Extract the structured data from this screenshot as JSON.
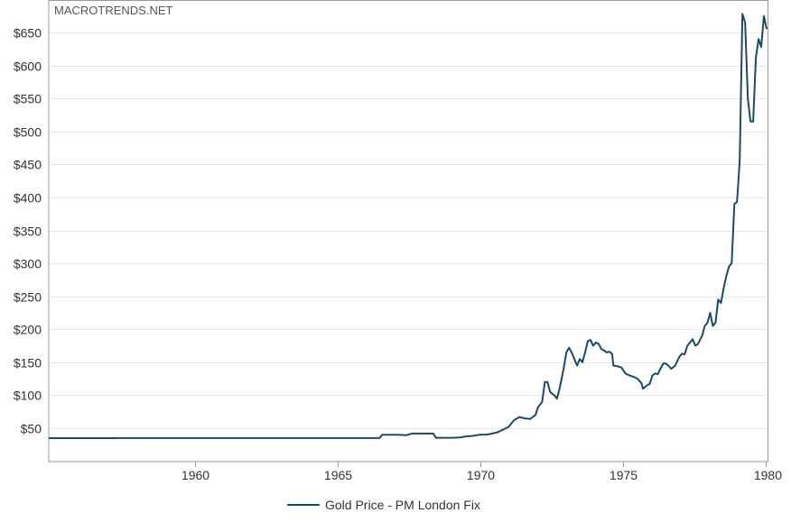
{
  "watermark": "MACROTRENDS.NET",
  "legend": {
    "label": "Gold Price - PM London Fix",
    "color": "#1b4a63"
  },
  "colors": {
    "line": "#1b4a63",
    "grid": "#e6e6e6",
    "frame": "#999999"
  },
  "chart_data": {
    "type": "line",
    "title": "",
    "xlabel": "",
    "ylabel": "",
    "xlim": [
      1955.0,
      1980.0
    ],
    "ylim": [
      0,
      680
    ],
    "grid": true,
    "legend_position": "bottom-center",
    "x_ticks": [
      1960,
      1965,
      1970,
      1975,
      1980
    ],
    "x_tick_labels": [
      "1960",
      "1965",
      "1970",
      "1975",
      "1980"
    ],
    "y_ticks": [
      50,
      100,
      150,
      200,
      250,
      300,
      350,
      400,
      450,
      500,
      550,
      600,
      650
    ],
    "y_tick_labels": [
      "$50",
      "$100",
      "$150",
      "$200",
      "$250",
      "$300",
      "$350",
      "$400",
      "$450",
      "$500",
      "$550",
      "$600",
      "$650"
    ],
    "series": [
      {
        "name": "Gold Price - PM London Fix",
        "points": [
          [
            1955.0,
            35.0
          ],
          [
            1956.5,
            35.0
          ],
          [
            1956.6,
            34.9
          ],
          [
            1957.5,
            34.9
          ],
          [
            1957.6,
            35.1
          ],
          [
            1960.0,
            35.1
          ],
          [
            1965.0,
            35.1
          ],
          [
            1967.3,
            35.1
          ],
          [
            1967.4,
            40.0
          ],
          [
            1968.0,
            40.0
          ],
          [
            1968.3,
            39.5
          ],
          [
            1968.5,
            42.0
          ],
          [
            1969.0,
            42.0
          ],
          [
            1969.3,
            42.0
          ],
          [
            1969.4,
            35.5
          ],
          [
            1970.0,
            35.5
          ],
          [
            1970.3,
            36.0
          ],
          [
            1970.5,
            37.5
          ],
          [
            1970.8,
            38.5
          ],
          [
            1971.0,
            40.0
          ],
          [
            1971.3,
            40.5
          ],
          [
            1971.5,
            42.0
          ],
          [
            1971.7,
            44.0
          ],
          [
            1971.9,
            48.0
          ],
          [
            1972.1,
            52.0
          ],
          [
            1972.3,
            62.0
          ],
          [
            1972.5,
            67.0
          ],
          [
            1972.7,
            65.0
          ],
          [
            1972.9,
            64.0
          ],
          [
            1973.1,
            70.0
          ],
          [
            1973.2,
            82.0
          ],
          [
            1973.35,
            90.0
          ],
          [
            1973.45,
            120.0
          ],
          [
            1973.55,
            120.0
          ],
          [
            1973.65,
            105.0
          ],
          [
            1973.8,
            100.0
          ],
          [
            1973.9,
            95.0
          ],
          [
            1974.0,
            110.0
          ],
          [
            1974.15,
            140.0
          ],
          [
            1974.25,
            165.0
          ],
          [
            1974.35,
            172.0
          ],
          [
            1974.45,
            165.0
          ],
          [
            1974.55,
            155.0
          ],
          [
            1974.65,
            145.0
          ],
          [
            1974.75,
            155.0
          ],
          [
            1974.85,
            150.0
          ],
          [
            1974.95,
            165.0
          ],
          [
            1975.05,
            182.0
          ],
          [
            1975.15,
            184.0
          ],
          [
            1975.25,
            175.0
          ],
          [
            1975.35,
            180.0
          ],
          [
            1975.45,
            178.0
          ],
          [
            1975.55,
            170.0
          ],
          [
            1975.65,
            168.0
          ],
          [
            1975.75,
            165.0
          ],
          [
            1975.85,
            166.0
          ],
          [
            1975.95,
            163.0
          ],
          [
            1976.0,
            145.0
          ],
          [
            1976.15,
            144.0
          ],
          [
            1976.3,
            142.0
          ],
          [
            1976.45,
            133.0
          ],
          [
            1976.6,
            130.0
          ],
          [
            1976.75,
            128.0
          ],
          [
            1976.9,
            125.0
          ],
          [
            1977.05,
            118.0
          ],
          [
            1977.1,
            110.0
          ],
          [
            1977.25,
            115.0
          ],
          [
            1977.35,
            117.0
          ],
          [
            1977.45,
            130.0
          ],
          [
            1977.55,
            133.0
          ],
          [
            1977.65,
            132.0
          ],
          [
            1977.75,
            140.0
          ],
          [
            1977.85,
            148.0
          ],
          [
            1977.95,
            148.0
          ],
          [
            1978.05,
            145.0
          ],
          [
            1978.15,
            140.0
          ],
          [
            1978.3,
            145.0
          ],
          [
            1978.45,
            158.0
          ],
          [
            1978.55,
            163.0
          ],
          [
            1978.65,
            162.0
          ],
          [
            1978.75,
            175.0
          ],
          [
            1978.85,
            180.0
          ],
          [
            1978.95,
            185.0
          ],
          [
            1979.05,
            175.0
          ],
          [
            1979.15,
            178.0
          ],
          [
            1979.3,
            190.0
          ],
          [
            1979.4,
            205.0
          ],
          [
            1979.5,
            210.0
          ],
          [
            1979.6,
            225.0
          ],
          [
            1979.7,
            205.0
          ],
          [
            1979.8,
            210.0
          ],
          [
            1979.9,
            245.0
          ],
          [
            1980.0,
            240.0
          ],
          [
            1980.1,
            262.0
          ],
          [
            1980.2,
            280.0
          ],
          [
            1980.3,
            295.0
          ],
          [
            1980.4,
            300.0
          ],
          [
            1980.5,
            390.0
          ],
          [
            1980.6,
            393.0
          ],
          [
            1980.7,
            455.0
          ],
          [
            1980.8,
            678.0
          ],
          [
            1980.9,
            665.0
          ],
          [
            1981.0,
            550.0
          ],
          [
            1981.1,
            515.0
          ],
          [
            1981.2,
            515.0
          ],
          [
            1981.3,
            612.0
          ],
          [
            1981.4,
            640.0
          ],
          [
            1981.5,
            628.0
          ],
          [
            1981.6,
            675.0
          ],
          [
            1981.7,
            655.0
          ]
        ]
      }
    ]
  }
}
